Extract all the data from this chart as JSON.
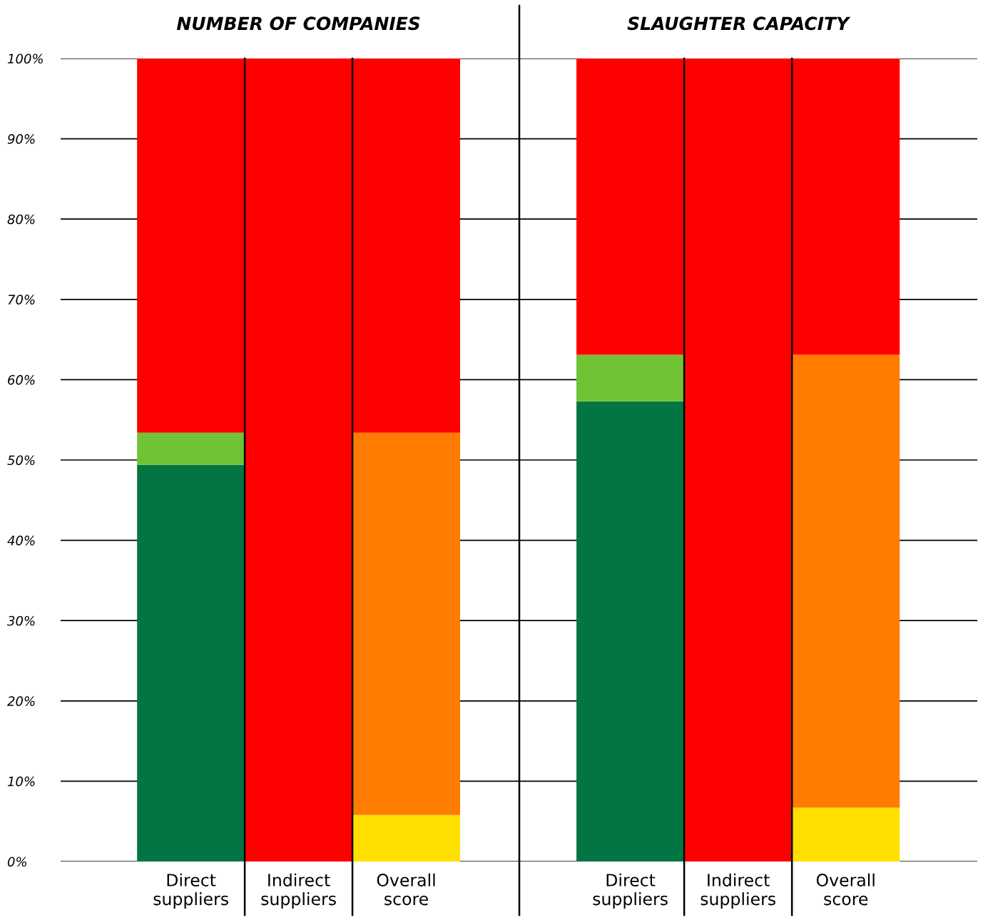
{
  "chart_data": [
    {
      "type": "bar",
      "title": "NUMBER OF COMPANIES",
      "stacked": true,
      "grid": "y",
      "legend": false,
      "categories": [
        "Direct\nsuppliers",
        "Indirect\nsuppliers",
        "Overall\nscore"
      ],
      "series": [
        {
          "color": "#037542",
          "values": [
            49.4,
            null,
            null
          ]
        },
        {
          "color": "#70c335",
          "values": [
            4.0,
            null,
            null
          ]
        },
        {
          "color": "#ffe000",
          "values": [
            null,
            null,
            5.8
          ]
        },
        {
          "color": "#ff7c00",
          "values": [
            null,
            null,
            47.6
          ]
        },
        {
          "color": "#ff0000",
          "values": [
            46.6,
            100,
            46.6
          ]
        }
      ],
      "ylim": [
        0,
        100
      ],
      "yticks": [
        {
          "value": 0,
          "label": "0%"
        },
        {
          "value": 10,
          "label": "10%"
        },
        {
          "value": 20,
          "label": "20%"
        },
        {
          "value": 30,
          "label": "30%"
        },
        {
          "value": 40,
          "label": "40%"
        },
        {
          "value": 50,
          "label": "50%"
        },
        {
          "value": 60,
          "label": "60%"
        },
        {
          "value": 70,
          "label": "70%"
        },
        {
          "value": 80,
          "label": "80%"
        },
        {
          "value": 90,
          "label": "90%"
        },
        {
          "value": 100,
          "label": "100%"
        }
      ]
    },
    {
      "type": "bar",
      "title": "SLAUGHTER CAPACITY",
      "stacked": true,
      "grid": "y",
      "legend": false,
      "tick_labels": "x",
      "categories": [
        "Direct\nsuppliers",
        "Indirect\nsuppliers",
        "Overall\nscore"
      ],
      "series": [
        {
          "color": "#037542",
          "values": [
            57.3,
            null,
            null
          ]
        },
        {
          "color": "#70c335",
          "values": [
            5.8,
            null,
            null
          ]
        },
        {
          "color": "#ffe000",
          "values": [
            null,
            null,
            6.7
          ]
        },
        {
          "color": "#ff7c00",
          "values": [
            null,
            null,
            56.4
          ]
        },
        {
          "color": "#ff0000",
          "values": [
            36.9,
            100,
            36.9
          ]
        }
      ],
      "ylim": [
        0,
        100
      ],
      "yticks": [
        {
          "value": 0,
          "label": null
        },
        {
          "value": 10,
          "label": null
        },
        {
          "value": 20,
          "label": null
        },
        {
          "value": 30,
          "label": null
        },
        {
          "value": 40,
          "label": null
        },
        {
          "value": 50,
          "label": null
        },
        {
          "value": 60,
          "label": null
        },
        {
          "value": 70,
          "label": null
        },
        {
          "value": 80,
          "label": null
        },
        {
          "value": 90,
          "label": null
        },
        {
          "value": 100,
          "label": null
        }
      ]
    }
  ]
}
